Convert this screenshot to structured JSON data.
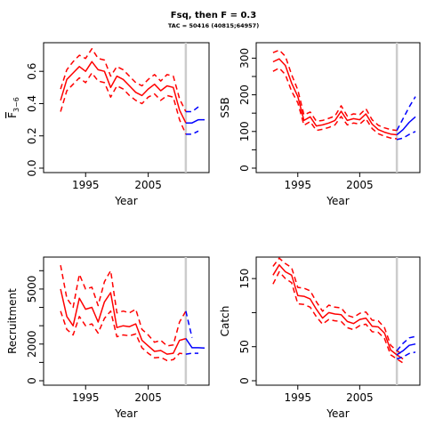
{
  "title": "Fsq, then F = 0.3",
  "subtitle": "TAC = 50416 (40815;64957)",
  "colors": {
    "history": "#ff0000",
    "projection": "#0000ff",
    "separator": "#cccccc"
  },
  "chart_data": [
    {
      "type": "line",
      "ylabel": "F",
      "ylabel_sub": "3−6",
      "xlabel": "Year",
      "xlim": [
        1989,
        2014
      ],
      "ylim": [
        0,
        0.75
      ],
      "x_ticks": [
        1995,
        2005
      ],
      "y_ticks": [
        0,
        0.2,
        0.4,
        0.6
      ],
      "y_tick_labels": [
        "0.0",
        "0.2",
        "0.4",
        "0.6"
      ],
      "separator_x": 2011,
      "series": [
        {
          "role": "history",
          "style": "solid",
          "x": [
            1991,
            1992,
            1993,
            1994,
            1995,
            1996,
            1997,
            1998,
            1999,
            2000,
            2001,
            2002,
            2003,
            2004,
            2005,
            2006,
            2007,
            2008,
            2009,
            2010,
            2011
          ],
          "values": [
            0.42,
            0.55,
            0.59,
            0.63,
            0.6,
            0.66,
            0.61,
            0.6,
            0.5,
            0.57,
            0.55,
            0.51,
            0.47,
            0.45,
            0.49,
            0.52,
            0.48,
            0.51,
            0.5,
            0.36,
            0.28
          ]
        },
        {
          "role": "history",
          "style": "dashed",
          "x": [
            1991,
            1992,
            1993,
            1994,
            1995,
            1996,
            1997,
            1998,
            1999,
            2000,
            2001,
            2002,
            2003,
            2004,
            2005,
            2006,
            2007,
            2008,
            2009,
            2010,
            2011
          ],
          "values": [
            0.49,
            0.61,
            0.66,
            0.7,
            0.68,
            0.74,
            0.68,
            0.67,
            0.57,
            0.63,
            0.61,
            0.57,
            0.53,
            0.51,
            0.55,
            0.58,
            0.54,
            0.58,
            0.57,
            0.43,
            0.35
          ]
        },
        {
          "role": "history",
          "style": "dashed",
          "x": [
            1991,
            1992,
            1993,
            1994,
            1995,
            1996,
            1997,
            1998,
            1999,
            2000,
            2001,
            2002,
            2003,
            2004,
            2005,
            2006,
            2007,
            2008,
            2009,
            2010,
            2011
          ],
          "values": [
            0.35,
            0.48,
            0.52,
            0.56,
            0.53,
            0.59,
            0.54,
            0.53,
            0.44,
            0.51,
            0.49,
            0.45,
            0.42,
            0.4,
            0.44,
            0.46,
            0.42,
            0.45,
            0.44,
            0.3,
            0.21
          ]
        },
        {
          "role": "projection",
          "style": "solid",
          "x": [
            2011,
            2012,
            2013,
            2014
          ],
          "values": [
            0.28,
            0.28,
            0.3,
            0.3
          ]
        },
        {
          "role": "projection",
          "style": "dashed",
          "x": [
            2011,
            2012,
            2013
          ],
          "values": [
            0.35,
            0.35,
            0.38
          ]
        },
        {
          "role": "projection",
          "style": "dashed",
          "x": [
            2011,
            2012,
            2013
          ],
          "values": [
            0.21,
            0.21,
            0.23
          ]
        }
      ]
    },
    {
      "type": "line",
      "ylabel": "SSB",
      "xlabel": "Year",
      "xlim": [
        1989,
        2014
      ],
      "ylim": [
        0,
        330
      ],
      "x_ticks": [
        1995,
        2005
      ],
      "y_ticks": [
        0,
        50,
        100,
        150,
        200,
        250,
        300
      ],
      "y_tick_labels": [
        "0",
        "",
        "100",
        "",
        "200",
        "",
        "300"
      ],
      "separator_x": 2011,
      "series": [
        {
          "role": "history",
          "style": "solid",
          "x": [
            1991,
            1992,
            1993,
            1994,
            1995,
            1996,
            1997,
            1998,
            1999,
            2000,
            2001,
            2002,
            2003,
            2004,
            2005,
            2006,
            2007,
            2008,
            2009,
            2010,
            2011
          ],
          "values": [
            290,
            298,
            280,
            232,
            195,
            130,
            140,
            115,
            118,
            123,
            130,
            155,
            130,
            135,
            132,
            148,
            120,
            105,
            98,
            93,
            91
          ]
        },
        {
          "role": "history",
          "style": "dashed",
          "x": [
            1991,
            1992,
            1993,
            1994,
            1995,
            1996,
            1997,
            1998,
            1999,
            2000,
            2001,
            2002,
            2003,
            2004,
            2005,
            2006,
            2007,
            2008,
            2009,
            2010,
            2011
          ],
          "values": [
            315,
            322,
            305,
            255,
            213,
            145,
            153,
            128,
            130,
            136,
            142,
            170,
            142,
            148,
            146,
            162,
            132,
            117,
            110,
            105,
            103
          ]
        },
        {
          "role": "history",
          "style": "dashed",
          "x": [
            1991,
            1992,
            1993,
            1994,
            1995,
            1996,
            1997,
            1998,
            1999,
            2000,
            2001,
            2002,
            2003,
            2004,
            2005,
            2006,
            2007,
            2008,
            2009,
            2010,
            2011
          ],
          "values": [
            264,
            273,
            255,
            210,
            178,
            117,
            127,
            103,
            106,
            111,
            118,
            141,
            118,
            123,
            120,
            135,
            108,
            94,
            87,
            82,
            80
          ]
        },
        {
          "role": "projection",
          "style": "solid",
          "x": [
            2011,
            2012,
            2013,
            2014
          ],
          "values": [
            91,
            105,
            125,
            140
          ]
        },
        {
          "role": "projection",
          "style": "dashed",
          "x": [
            2011,
            2012,
            2013,
            2014
          ],
          "values": [
            103,
            135,
            167,
            195
          ]
        },
        {
          "role": "projection",
          "style": "dashed",
          "x": [
            2011,
            2012,
            2013,
            2014
          ],
          "values": [
            78,
            82,
            92,
            100
          ]
        }
      ]
    },
    {
      "type": "line",
      "ylabel": "Recruitment",
      "xlabel": "Year",
      "xlim": [
        1989,
        2014
      ],
      "ylim": [
        0,
        6500
      ],
      "x_ticks": [
        1995,
        2005
      ],
      "y_ticks": [
        0,
        1000,
        2000,
        3000,
        4000,
        5000,
        6000
      ],
      "y_tick_labels": [
        "0",
        "",
        "2000",
        "",
        "",
        "5000",
        ""
      ],
      "separator_x": 2011,
      "series": [
        {
          "role": "history",
          "style": "solid",
          "x": [
            1991,
            1992,
            1993,
            1994,
            1995,
            1996,
            1997,
            1998,
            1999,
            2000,
            2001,
            2002,
            2003,
            2004,
            2005,
            2006,
            2007,
            2008,
            2009,
            2010,
            2011
          ],
          "values": [
            5000,
            3500,
            3000,
            4500,
            3900,
            4000,
            3200,
            4300,
            4800,
            2900,
            3000,
            2950,
            3100,
            2200,
            1900,
            1600,
            1650,
            1450,
            1500,
            2200,
            2300
          ]
        },
        {
          "role": "history",
          "style": "dashed",
          "x": [
            1991,
            1992,
            1993,
            1994,
            1995,
            1996,
            1997,
            1998,
            1999,
            2000,
            2001,
            2002,
            2003,
            2004,
            2005,
            2006,
            2007,
            2008,
            2009,
            2010,
            2011
          ],
          "values": [
            6300,
            4500,
            4000,
            5800,
            5000,
            5100,
            4100,
            5400,
            6000,
            3700,
            3800,
            3700,
            3900,
            2800,
            2500,
            2100,
            2200,
            1900,
            1950,
            3200,
            3800
          ]
        },
        {
          "role": "history",
          "style": "dashed",
          "x": [
            1991,
            1992,
            1993,
            1994,
            1995,
            1996,
            1997,
            1998,
            1999,
            2000,
            2001,
            2002,
            2003,
            2004,
            2005,
            2006,
            2007,
            2008,
            2009,
            2010,
            2011
          ],
          "values": [
            3800,
            2800,
            2500,
            3500,
            3000,
            3100,
            2600,
            3400,
            3800,
            2400,
            2500,
            2450,
            2550,
            1800,
            1500,
            1250,
            1280,
            1100,
            1150,
            1500,
            1450
          ]
        },
        {
          "role": "projection",
          "style": "solid",
          "x": [
            2011,
            2012,
            2013,
            2014
          ],
          "values": [
            2300,
            1800,
            1800,
            1780
          ]
        },
        {
          "role": "projection",
          "style": "dashed",
          "x": [
            2011,
            2012
          ],
          "values": [
            3800,
            2350
          ]
        },
        {
          "role": "projection",
          "style": "dashed",
          "x": [
            2011,
            2012,
            2013
          ],
          "values": [
            1450,
            1500,
            1500
          ]
        }
      ]
    },
    {
      "type": "line",
      "ylabel": "Catch",
      "xlabel": "Year",
      "xlim": [
        1989,
        2014
      ],
      "ylim": [
        0,
        175
      ],
      "x_ticks": [
        1995,
        2005
      ],
      "y_ticks": [
        0,
        50,
        100,
        150
      ],
      "y_tick_labels": [
        "0",
        "50",
        "",
        "150"
      ],
      "separator_x": 2011,
      "series": [
        {
          "role": "history",
          "style": "solid",
          "x": [
            1991,
            1992,
            1993,
            1994,
            1995,
            1996,
            1997,
            1998,
            1999,
            2000,
            2001,
            2002,
            2003,
            2004,
            2005,
            2006,
            2007,
            2008,
            2009,
            2010,
            2011,
            2012
          ],
          "values": [
            155,
            170,
            160,
            155,
            125,
            124,
            120,
            105,
            92,
            100,
            98,
            97,
            87,
            84,
            90,
            92,
            80,
            79,
            70,
            45,
            38,
            32
          ]
        },
        {
          "role": "history",
          "style": "dashed",
          "x": [
            1991,
            1992,
            1993,
            1994,
            1995,
            1996,
            1997,
            1998,
            1999,
            2000,
            2001,
            2002,
            2003,
            2004,
            2005,
            2006,
            2007,
            2008,
            2009,
            2010,
            2011,
            2012
          ],
          "values": [
            168,
            180,
            172,
            166,
            137,
            136,
            132,
            116,
            102,
            111,
            108,
            107,
            96,
            93,
            99,
            101,
            89,
            88,
            78,
            52,
            44,
            38
          ]
        },
        {
          "role": "history",
          "style": "dashed",
          "x": [
            1991,
            1992,
            1993,
            1994,
            1995,
            1996,
            1997,
            1998,
            1999,
            2000,
            2001,
            2002,
            2003,
            2004,
            2005,
            2006,
            2007,
            2008,
            2009,
            2010,
            2011,
            2012
          ],
          "values": [
            142,
            160,
            150,
            144,
            113,
            112,
            108,
            94,
            83,
            90,
            88,
            87,
            78,
            75,
            81,
            83,
            72,
            71,
            62,
            38,
            32,
            26
          ]
        },
        {
          "role": "projection",
          "style": "solid",
          "x": [
            2011,
            2012,
            2013,
            2014
          ],
          "values": [
            38,
            44,
            52,
            54
          ]
        },
        {
          "role": "projection",
          "style": "dashed",
          "x": [
            2011,
            2012,
            2013,
            2014
          ],
          "values": [
            44,
            55,
            63,
            65
          ]
        },
        {
          "role": "projection",
          "style": "dashed",
          "x": [
            2011,
            2012,
            2013,
            2014
          ],
          "values": [
            32,
            35,
            40,
            42
          ]
        }
      ]
    }
  ]
}
